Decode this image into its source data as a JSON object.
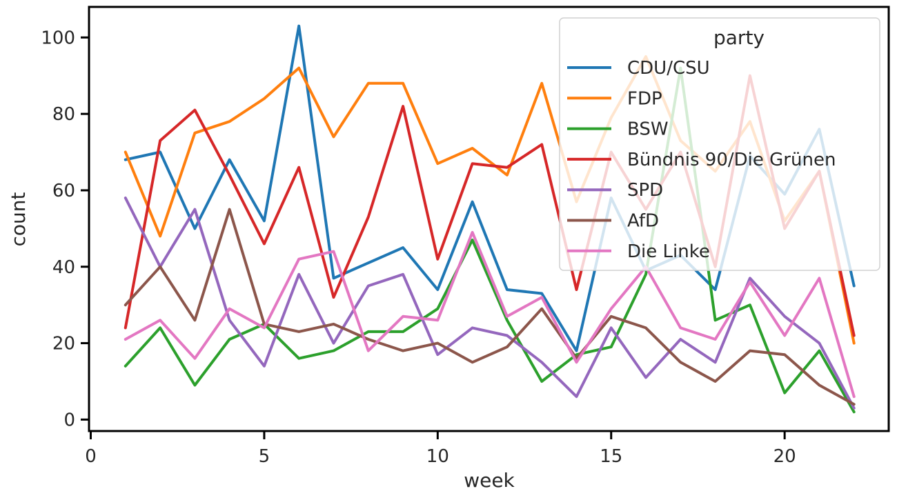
{
  "chart_data": {
    "type": "line",
    "xlabel": "week",
    "ylabel": "count",
    "xlim": [
      -0.05,
      23.0
    ],
    "ylim": [
      -3,
      108
    ],
    "x_ticks": [
      0,
      5,
      10,
      15,
      20
    ],
    "y_ticks": [
      0,
      20,
      40,
      60,
      80,
      100
    ],
    "x": [
      1,
      2,
      3,
      4,
      5,
      6,
      7,
      8,
      9,
      10,
      11,
      12,
      13,
      14,
      15,
      16,
      17,
      18,
      19,
      20,
      21,
      22
    ],
    "legend": {
      "title": "party",
      "placement": "top-right"
    },
    "series": [
      {
        "name": "CDU/CSU",
        "color": "#1f77b4",
        "values": [
          68,
          70,
          50,
          68,
          52,
          103,
          37,
          41,
          45,
          34,
          57,
          34,
          33,
          18,
          58,
          39,
          43,
          34,
          69,
          59,
          76,
          35
        ]
      },
      {
        "name": "FDP",
        "color": "#ff7f0e",
        "values": [
          70,
          48,
          75,
          78,
          84,
          92,
          74,
          88,
          88,
          67,
          71,
          64,
          88,
          57,
          79,
          95,
          73,
          65,
          78,
          52,
          65,
          20
        ]
      },
      {
        "name": "BSW",
        "color": "#2ca02c",
        "values": [
          14,
          24,
          9,
          21,
          25,
          16,
          18,
          23,
          23,
          29,
          47,
          26,
          10,
          17,
          19,
          38,
          92,
          26,
          30,
          7,
          18,
          2
        ]
      },
      {
        "name": "Bündnis 90/Die Grünen",
        "color": "#d62728",
        "values": [
          24,
          73,
          81,
          64,
          46,
          66,
          32,
          53,
          82,
          42,
          67,
          66,
          72,
          34,
          70,
          55,
          70,
          40,
          90,
          50,
          65,
          22
        ]
      },
      {
        "name": "SPD",
        "color": "#9467bd",
        "values": [
          58,
          40,
          55,
          26,
          14,
          38,
          20,
          35,
          38,
          17,
          24,
          22,
          15,
          6,
          24,
          11,
          21,
          15,
          37,
          27,
          20,
          3
        ]
      },
      {
        "name": "AfD",
        "color": "#8c564b",
        "values": [
          30,
          40,
          26,
          55,
          25,
          23,
          25,
          21,
          18,
          20,
          15,
          19,
          29,
          16,
          27,
          24,
          15,
          10,
          18,
          17,
          9,
          4
        ]
      },
      {
        "name": "Die Linke",
        "color": "#e377c2",
        "values": [
          21,
          26,
          16,
          29,
          24,
          42,
          44,
          18,
          27,
          26,
          49,
          27,
          32,
          15,
          29,
          40,
          24,
          21,
          36,
          22,
          37,
          6
        ]
      }
    ]
  }
}
